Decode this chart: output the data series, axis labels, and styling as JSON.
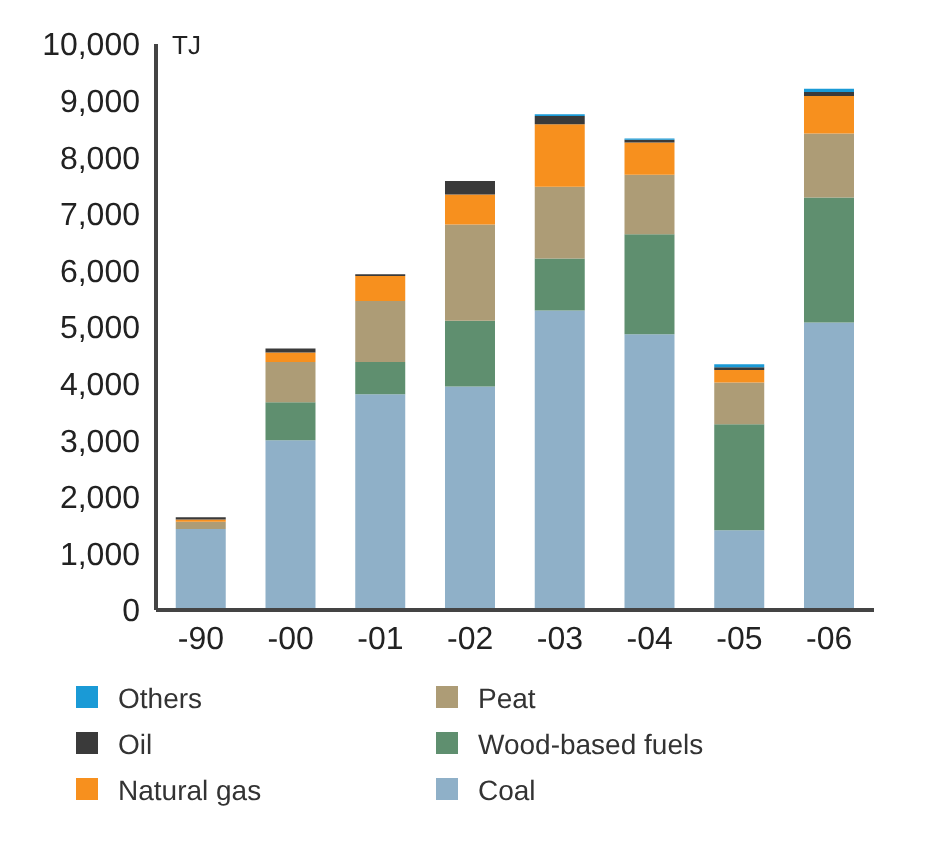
{
  "chart_data": {
    "type": "bar",
    "stacked": true,
    "ylabel": "TJ",
    "categories": [
      "-90",
      "-00",
      "-01",
      "-02",
      "-03",
      "-04",
      "-05",
      "-06"
    ],
    "series": [
      {
        "name": "Coal",
        "color": "#8fb0c8",
        "values": [
          1430,
          3000,
          3810,
          3950,
          5290,
          4870,
          1410,
          5080
        ]
      },
      {
        "name": "Wood-based fuels",
        "color": "#5f8f6f",
        "values": [
          0,
          670,
          570,
          1160,
          920,
          1770,
          1870,
          2210
        ]
      },
      {
        "name": "Peat",
        "color": "#ad9c76",
        "values": [
          130,
          710,
          1080,
          1700,
          1270,
          1050,
          740,
          1130
        ]
      },
      {
        "name": "Natural gas",
        "color": "#f7901e",
        "values": [
          40,
          170,
          440,
          530,
          1100,
          570,
          220,
          660
        ]
      },
      {
        "name": "Oil",
        "color": "#3a3a3a",
        "values": [
          40,
          70,
          30,
          240,
          150,
          50,
          50,
          70
        ]
      },
      {
        "name": "Others",
        "color": "#1a9ad6",
        "values": [
          0,
          0,
          0,
          0,
          30,
          20,
          50,
          60
        ]
      }
    ],
    "ylim": [
      0,
      10000
    ],
    "yticks": [
      0,
      {
        "value": 1000,
        "label": "1,000"
      },
      {
        "value": 2000,
        "label": "2,000"
      },
      {
        "value": 3000,
        "label": "3,000"
      },
      {
        "value": 4000,
        "label": "4,000"
      },
      {
        "value": 5000,
        "label": "5,000"
      },
      {
        "value": 6000,
        "label": "6,000"
      },
      {
        "value": 7000,
        "label": "7,000"
      },
      {
        "value": 8000,
        "label": "8,000"
      },
      {
        "value": 9000,
        "label": "9,000"
      },
      {
        "value": 10000,
        "label": "10,000"
      }
    ],
    "grid": false,
    "legend": "bottom"
  }
}
